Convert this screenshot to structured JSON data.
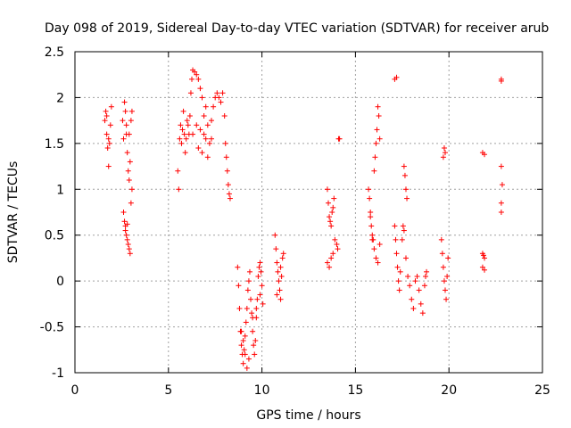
{
  "chart_data": {
    "type": "scatter",
    "title": "Day 098 of 2019, Sidereal Day-to-day VTEC variation (SDTVAR) for receiver arub",
    "xlabel": "GPS time / hours",
    "ylabel": "SDTVAR / TECUs",
    "xlim": [
      0,
      25
    ],
    "ylim": [
      -1,
      2.5
    ],
    "xticks": [
      0,
      5,
      10,
      15,
      20,
      25
    ],
    "xtick_labels": [
      "0",
      "5",
      "10",
      "15",
      "20",
      "25"
    ],
    "yticks": [
      -1,
      -0.5,
      0,
      0.5,
      1,
      1.5,
      2,
      2.5
    ],
    "ytick_labels": [
      "-1",
      "-0.5",
      "0",
      "0.5",
      "1",
      "1.5",
      "2",
      "2.5"
    ],
    "grid": true,
    "marker": "+",
    "color": "#ff0000",
    "series": [
      {
        "name": "SDTVAR",
        "points": [
          [
            1.6,
            1.75
          ],
          [
            1.65,
            1.85
          ],
          [
            1.7,
            1.6
          ],
          [
            1.75,
            1.45
          ],
          [
            1.8,
            1.25
          ],
          [
            1.85,
            1.5
          ],
          [
            1.9,
            1.7
          ],
          [
            1.95,
            1.9
          ],
          [
            1.7,
            1.8
          ],
          [
            1.8,
            1.55
          ],
          [
            2.55,
            1.75
          ],
          [
            2.6,
            1.55
          ],
          [
            2.65,
            1.95
          ],
          [
            2.7,
            1.85
          ],
          [
            2.75,
            1.6
          ],
          [
            2.8,
            1.4
          ],
          [
            2.85,
            1.2
          ],
          [
            2.9,
            1.1
          ],
          [
            2.95,
            1.3
          ],
          [
            3.0,
            1.75
          ],
          [
            3.05,
            1.85
          ],
          [
            2.75,
            1.7
          ],
          [
            2.9,
            1.6
          ],
          [
            2.6,
            0.75
          ],
          [
            2.65,
            0.65
          ],
          [
            2.7,
            0.6
          ],
          [
            2.75,
            0.5
          ],
          [
            2.8,
            0.45
          ],
          [
            2.85,
            0.4
          ],
          [
            2.9,
            0.35
          ],
          [
            2.95,
            0.3
          ],
          [
            2.7,
            0.55
          ],
          [
            2.8,
            0.62
          ],
          [
            3.0,
            0.85
          ],
          [
            3.05,
            1.0
          ],
          [
            5.5,
            1.2
          ],
          [
            5.55,
            1.0
          ],
          [
            5.6,
            1.55
          ],
          [
            5.65,
            1.7
          ],
          [
            5.7,
            1.5
          ],
          [
            5.75,
            1.65
          ],
          [
            5.8,
            1.85
          ],
          [
            5.85,
            1.6
          ],
          [
            5.9,
            1.4
          ],
          [
            5.95,
            1.55
          ],
          [
            6.0,
            1.75
          ],
          [
            6.05,
            1.7
          ],
          [
            6.1,
            1.6
          ],
          [
            6.15,
            1.8
          ],
          [
            6.2,
            2.05
          ],
          [
            6.25,
            2.2
          ],
          [
            6.3,
            2.3
          ],
          [
            6.4,
            2.28
          ],
          [
            6.5,
            2.25
          ],
          [
            6.6,
            2.2
          ],
          [
            6.7,
            2.1
          ],
          [
            6.8,
            2.0
          ],
          [
            6.9,
            1.8
          ],
          [
            7.0,
            1.55
          ],
          [
            7.1,
            1.35
          ],
          [
            7.2,
            1.5
          ],
          [
            7.3,
            1.75
          ],
          [
            7.4,
            1.9
          ],
          [
            7.5,
            2.0
          ],
          [
            7.6,
            2.05
          ],
          [
            7.7,
            2.0
          ],
          [
            7.8,
            1.95
          ],
          [
            7.9,
            2.05
          ],
          [
            8.0,
            1.8
          ],
          [
            8.05,
            1.5
          ],
          [
            8.1,
            1.35
          ],
          [
            8.15,
            1.2
          ],
          [
            8.2,
            1.05
          ],
          [
            8.25,
            0.95
          ],
          [
            8.3,
            0.9
          ],
          [
            6.3,
            1.6
          ],
          [
            6.5,
            1.7
          ],
          [
            6.7,
            1.65
          ],
          [
            6.9,
            1.6
          ],
          [
            7.1,
            1.7
          ],
          [
            7.3,
            1.55
          ],
          [
            6.6,
            1.45
          ],
          [
            6.8,
            1.4
          ],
          [
            7.0,
            1.9
          ],
          [
            8.7,
            0.15
          ],
          [
            8.75,
            -0.05
          ],
          [
            8.8,
            -0.3
          ],
          [
            8.85,
            -0.55
          ],
          [
            8.9,
            -0.7
          ],
          [
            8.95,
            -0.8
          ],
          [
            9.0,
            -0.9
          ],
          [
            9.05,
            -0.75
          ],
          [
            9.1,
            -0.6
          ],
          [
            9.15,
            -0.45
          ],
          [
            9.2,
            -0.3
          ],
          [
            9.25,
            -0.1
          ],
          [
            9.3,
            0.0
          ],
          [
            9.35,
            0.1
          ],
          [
            9.4,
            -0.2
          ],
          [
            9.45,
            -0.35
          ],
          [
            9.5,
            -0.55
          ],
          [
            9.55,
            -0.7
          ],
          [
            9.6,
            -0.8
          ],
          [
            9.65,
            -0.65
          ],
          [
            9.7,
            -0.4
          ],
          [
            9.75,
            -0.2
          ],
          [
            9.8,
            0.05
          ],
          [
            9.85,
            0.15
          ],
          [
            9.9,
            0.2
          ],
          [
            9.95,
            0.1
          ],
          [
            10.0,
            -0.05
          ],
          [
            10.05,
            -0.25
          ],
          [
            8.9,
            -0.55
          ],
          [
            9.0,
            -0.65
          ],
          [
            9.1,
            -0.8
          ],
          [
            9.2,
            -0.95
          ],
          [
            9.3,
            -0.85
          ],
          [
            9.5,
            -0.4
          ],
          [
            9.7,
            -0.3
          ],
          [
            9.9,
            -0.15
          ],
          [
            10.7,
            0.5
          ],
          [
            10.75,
            0.35
          ],
          [
            10.8,
            0.2
          ],
          [
            10.85,
            0.1
          ],
          [
            10.9,
            0.0
          ],
          [
            10.95,
            -0.1
          ],
          [
            11.0,
            -0.2
          ],
          [
            11.05,
            0.05
          ],
          [
            11.1,
            0.25
          ],
          [
            11.15,
            0.3
          ],
          [
            10.8,
            -0.15
          ],
          [
            11.0,
            0.15
          ],
          [
            13.5,
            1.0
          ],
          [
            13.55,
            0.85
          ],
          [
            13.6,
            0.7
          ],
          [
            13.65,
            0.65
          ],
          [
            13.7,
            0.6
          ],
          [
            13.75,
            0.75
          ],
          [
            13.8,
            0.8
          ],
          [
            13.85,
            0.9
          ],
          [
            13.5,
            0.2
          ],
          [
            13.6,
            0.15
          ],
          [
            13.7,
            0.25
          ],
          [
            13.8,
            0.3
          ],
          [
            13.9,
            0.45
          ],
          [
            14.0,
            0.4
          ],
          [
            14.05,
            0.35
          ],
          [
            14.1,
            1.55
          ],
          [
            14.15,
            1.55
          ],
          [
            15.7,
            1.0
          ],
          [
            15.75,
            0.9
          ],
          [
            15.8,
            0.75
          ],
          [
            15.85,
            0.6
          ],
          [
            15.9,
            0.5
          ],
          [
            15.95,
            0.45
          ],
          [
            16.0,
            1.2
          ],
          [
            16.05,
            1.35
          ],
          [
            16.1,
            1.5
          ],
          [
            16.15,
            1.65
          ],
          [
            16.2,
            1.9
          ],
          [
            16.25,
            1.8
          ],
          [
            16.3,
            1.55
          ],
          [
            15.8,
            0.7
          ],
          [
            15.9,
            0.45
          ],
          [
            16.0,
            0.35
          ],
          [
            16.1,
            0.25
          ],
          [
            16.2,
            0.2
          ],
          [
            16.3,
            0.4
          ],
          [
            17.1,
            2.2
          ],
          [
            17.2,
            2.22
          ],
          [
            17.1,
            0.6
          ],
          [
            17.15,
            0.45
          ],
          [
            17.2,
            0.3
          ],
          [
            17.25,
            0.15
          ],
          [
            17.3,
            0.0
          ],
          [
            17.35,
            -0.1
          ],
          [
            17.4,
            0.1
          ],
          [
            17.5,
            0.45
          ],
          [
            17.55,
            0.6
          ],
          [
            17.6,
            0.55
          ],
          [
            17.6,
            1.25
          ],
          [
            17.65,
            1.15
          ],
          [
            17.7,
            1.0
          ],
          [
            17.75,
            0.9
          ],
          [
            17.7,
            0.25
          ],
          [
            17.8,
            0.05
          ],
          [
            17.9,
            -0.05
          ],
          [
            18.0,
            -0.2
          ],
          [
            18.1,
            -0.3
          ],
          [
            18.2,
            0.0
          ],
          [
            18.3,
            0.05
          ],
          [
            18.4,
            -0.1
          ],
          [
            18.5,
            -0.25
          ],
          [
            18.6,
            -0.35
          ],
          [
            18.7,
            -0.05
          ],
          [
            18.75,
            0.05
          ],
          [
            18.8,
            0.1
          ],
          [
            19.7,
            1.35
          ],
          [
            19.75,
            1.45
          ],
          [
            19.8,
            1.4
          ],
          [
            19.6,
            0.45
          ],
          [
            19.65,
            0.3
          ],
          [
            19.7,
            0.15
          ],
          [
            19.75,
            0.0
          ],
          [
            19.8,
            -0.1
          ],
          [
            19.85,
            -0.2
          ],
          [
            19.9,
            0.05
          ],
          [
            19.95,
            0.25
          ],
          [
            21.8,
            1.4
          ],
          [
            21.9,
            1.38
          ],
          [
            21.8,
            0.3
          ],
          [
            21.85,
            0.28
          ],
          [
            21.9,
            0.25
          ],
          [
            21.8,
            0.15
          ],
          [
            21.9,
            0.12
          ],
          [
            22.8,
            2.2
          ],
          [
            22.8,
            2.18
          ],
          [
            22.8,
            1.25
          ],
          [
            22.85,
            1.05
          ],
          [
            22.8,
            0.85
          ],
          [
            22.8,
            0.75
          ]
        ]
      }
    ]
  }
}
